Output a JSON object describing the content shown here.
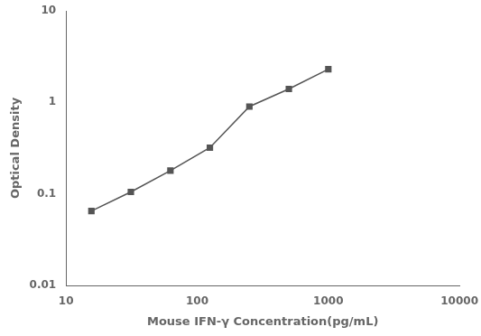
{
  "chart_data": {
    "type": "line",
    "xlabel": "Mouse IFN-γ Concentration(pg/mL)",
    "ylabel": "Optical Density",
    "x": [
      15.6,
      31.2,
      62.5,
      125,
      250,
      500,
      1000
    ],
    "values": [
      0.065,
      0.105,
      0.18,
      0.32,
      0.9,
      1.4,
      2.3
    ],
    "color": "#555555",
    "marker": "square",
    "log": true,
    "xlim": [
      10,
      10000
    ],
    "ylim": [
      0.01,
      10
    ],
    "xticks": [
      10,
      100,
      1000,
      10000
    ],
    "yticks": [
      0.01,
      0.1,
      1,
      10
    ],
    "grid": false
  }
}
